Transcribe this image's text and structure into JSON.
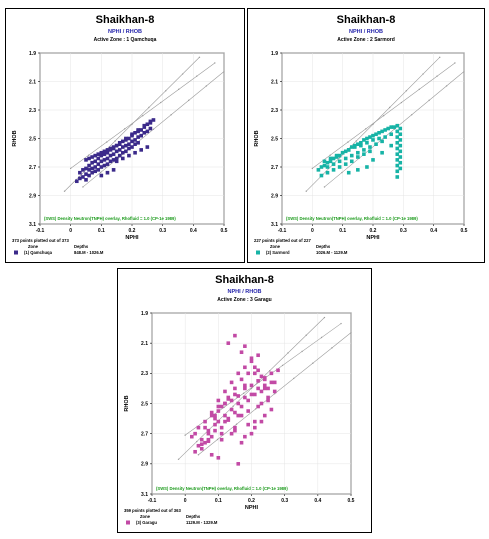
{
  "chart_data": [
    {
      "type": "scatter",
      "title": "Shaikhan-8",
      "subtitle": "NPHI / RHOB",
      "zone_title": "Active Zone : 1 Qamchuqa",
      "xlabel": "NPHI",
      "ylabel": "RHOB",
      "xlim": [
        -0.1,
        0.5
      ],
      "ylim": [
        3.1,
        1.9
      ],
      "x_ticks": [
        "-0.1",
        "0",
        "0.1",
        "0.2",
        "0.3",
        "0.4",
        "0.5"
      ],
      "y_ticks": [
        "1.9",
        "2.1",
        "2.3",
        "2.5",
        "2.7",
        "2.9",
        "3.1"
      ],
      "grid": true,
      "overlay_note": "(SWS) Density Neutron(TNPH) overlay, Rhofluid = 1.0 (CP-1e 1989)",
      "points_text": "373 points plotted out of 373",
      "zone_header": "Zone",
      "depths_header": "Depths",
      "zone_name": "(1) Qamchuqa",
      "depths": "848.M - 1026.M",
      "color": "#3b2a8a",
      "series": [
        {
          "name": "(1) Qamchuqa",
          "x": [
            0.03,
            0.04,
            0.05,
            0.05,
            0.06,
            0.06,
            0.07,
            0.07,
            0.08,
            0.08,
            0.09,
            0.09,
            0.1,
            0.1,
            0.11,
            0.11,
            0.12,
            0.12,
            0.13,
            0.13,
            0.14,
            0.14,
            0.15,
            0.15,
            0.16,
            0.16,
            0.17,
            0.17,
            0.18,
            0.18,
            0.19,
            0.19,
            0.2,
            0.2,
            0.21,
            0.21,
            0.22,
            0.22,
            0.23,
            0.23,
            0.24,
            0.24,
            0.25,
            0.25,
            0.26,
            0.26,
            0.27,
            0.02,
            0.03,
            0.04,
            0.05,
            0.06,
            0.07,
            0.08,
            0.09,
            0.1,
            0.11,
            0.12,
            0.13,
            0.14,
            0.15,
            0.16,
            0.17,
            0.18,
            0.19,
            0.2,
            0.21,
            0.22,
            0.05,
            0.06,
            0.07,
            0.08,
            0.09,
            0.1,
            0.11,
            0.12,
            0.13,
            0.14,
            0.15,
            0.16,
            0.18,
            0.2,
            0.22,
            0.24,
            0.26,
            0.15,
            0.17,
            0.19,
            0.21,
            0.23,
            0.25,
            0.1,
            0.12,
            0.14
          ],
          "y": [
            2.74,
            2.72,
            2.71,
            2.75,
            2.69,
            2.72,
            2.67,
            2.71,
            2.66,
            2.7,
            2.64,
            2.68,
            2.62,
            2.66,
            2.61,
            2.65,
            2.6,
            2.64,
            2.58,
            2.62,
            2.57,
            2.61,
            2.55,
            2.59,
            2.54,
            2.58,
            2.52,
            2.56,
            2.51,
            2.55,
            2.5,
            2.54,
            2.48,
            2.52,
            2.46,
            2.51,
            2.45,
            2.49,
            2.44,
            2.48,
            2.42,
            2.46,
            2.4,
            2.45,
            2.39,
            2.43,
            2.37,
            2.8,
            2.78,
            2.77,
            2.79,
            2.76,
            2.74,
            2.73,
            2.72,
            2.7,
            2.69,
            2.68,
            2.66,
            2.65,
            2.64,
            2.62,
            2.6,
            2.59,
            2.57,
            2.56,
            2.54,
            2.53,
            2.65,
            2.64,
            2.63,
            2.62,
            2.61,
            2.6,
            2.59,
            2.58,
            2.57,
            2.56,
            2.55,
            2.53,
            2.5,
            2.47,
            2.44,
            2.41,
            2.38,
            2.66,
            2.64,
            2.62,
            2.6,
            2.58,
            2.56,
            2.76,
            2.74,
            2.72
          ]
        }
      ]
    },
    {
      "type": "scatter",
      "title": "Shaikhan-8",
      "subtitle": "NPHI / RHOB",
      "zone_title": "Active Zone : 2 Sarmord",
      "xlabel": "NPHI",
      "ylabel": "RHOB",
      "xlim": [
        -0.1,
        0.5
      ],
      "ylim": [
        3.1,
        1.9
      ],
      "x_ticks": [
        "-0.1",
        "0",
        "0.1",
        "0.2",
        "0.3",
        "0.4",
        "0.5"
      ],
      "y_ticks": [
        "1.9",
        "2.1",
        "2.3",
        "2.5",
        "2.7",
        "2.9",
        "3.1"
      ],
      "grid": true,
      "overlay_note": "(SWS) Density Neutron(TNPH) overlay, Rhofluid = 1.0 (CP-1e 1989)",
      "points_text": "227 points plotted out of 227",
      "zone_header": "Zone",
      "depths_header": "Depths",
      "zone_name": "(2) Sarmord",
      "depths": "1026.M - 1129.M",
      "color": "#17b3a6",
      "series": [
        {
          "name": "(2) Sarmord",
          "x": [
            0.02,
            0.03,
            0.04,
            0.05,
            0.06,
            0.07,
            0.08,
            0.09,
            0.1,
            0.11,
            0.12,
            0.13,
            0.14,
            0.15,
            0.16,
            0.17,
            0.18,
            0.19,
            0.2,
            0.21,
            0.22,
            0.23,
            0.24,
            0.25,
            0.26,
            0.27,
            0.28,
            0.28,
            0.28,
            0.28,
            0.28,
            0.28,
            0.28,
            0.28,
            0.28,
            0.28,
            0.29,
            0.29,
            0.29,
            0.29,
            0.29,
            0.29,
            0.29,
            0.29,
            0.04,
            0.06,
            0.08,
            0.1,
            0.12,
            0.14,
            0.16,
            0.18,
            0.2,
            0.22,
            0.24,
            0.26,
            0.05,
            0.07,
            0.09,
            0.11,
            0.13,
            0.15,
            0.17,
            0.19,
            0.21,
            0.23,
            0.03,
            0.05,
            0.07,
            0.09,
            0.11,
            0.13,
            0.15,
            0.17,
            0.19,
            0.12,
            0.15,
            0.18,
            0.2,
            0.23,
            0.26
          ],
          "y": [
            2.72,
            2.7,
            2.69,
            2.67,
            2.66,
            2.64,
            2.63,
            2.62,
            2.6,
            2.59,
            2.58,
            2.56,
            2.55,
            2.54,
            2.53,
            2.51,
            2.5,
            2.49,
            2.48,
            2.47,
            2.46,
            2.45,
            2.44,
            2.43,
            2.42,
            2.42,
            2.41,
            2.45,
            2.49,
            2.53,
            2.57,
            2.61,
            2.65,
            2.69,
            2.73,
            2.77,
            2.43,
            2.47,
            2.51,
            2.55,
            2.59,
            2.63,
            2.67,
            2.71,
            2.66,
            2.64,
            2.62,
            2.6,
            2.58,
            2.56,
            2.55,
            2.53,
            2.51,
            2.5,
            2.49,
            2.47,
            2.7,
            2.68,
            2.66,
            2.64,
            2.62,
            2.6,
            2.58,
            2.56,
            2.54,
            2.52,
            2.76,
            2.74,
            2.72,
            2.7,
            2.68,
            2.66,
            2.63,
            2.61,
            2.59,
            2.74,
            2.72,
            2.7,
            2.65,
            2.6,
            2.55
          ]
        }
      ]
    },
    {
      "type": "scatter",
      "title": "Shaikhan-8",
      "subtitle": "NPHI / RHOB",
      "zone_title": "Active Zone : 3 Garagu",
      "xlabel": "NPHI",
      "ylabel": "RHOB",
      "xlim": [
        -0.1,
        0.5
      ],
      "ylim": [
        3.1,
        1.9
      ],
      "x_ticks": [
        "-0.1",
        "0",
        "0.1",
        "0.2",
        "0.3",
        "0.4",
        "0.5"
      ],
      "y_ticks": [
        "1.9",
        "2.1",
        "2.3",
        "2.5",
        "2.7",
        "2.9",
        "3.1"
      ],
      "grid": true,
      "overlay_note": "(SWS) Density Neutron(TNPH) overlay, Rhofluid = 1.0 (CP-1e 1989)",
      "points_text": "359 points plotted out of 363",
      "zone_header": "Zone",
      "depths_header": "Depths",
      "zone_name": "(3) Garagu",
      "depths": "1129.M - 1329.M",
      "color": "#c24aa5",
      "series": [
        {
          "name": "(3) Garagu",
          "x": [
            0.02,
            0.03,
            0.04,
            0.05,
            0.06,
            0.07,
            0.08,
            0.09,
            0.1,
            0.11,
            0.12,
            0.13,
            0.14,
            0.15,
            0.16,
            0.17,
            0.18,
            0.19,
            0.2,
            0.21,
            0.22,
            0.23,
            0.24,
            0.25,
            0.26,
            0.27,
            0.28,
            0.04,
            0.06,
            0.08,
            0.1,
            0.12,
            0.14,
            0.16,
            0.18,
            0.2,
            0.22,
            0.24,
            0.26,
            0.05,
            0.07,
            0.09,
            0.11,
            0.13,
            0.15,
            0.17,
            0.19,
            0.21,
            0.23,
            0.25,
            0.03,
            0.05,
            0.07,
            0.09,
            0.11,
            0.13,
            0.15,
            0.17,
            0.19,
            0.21,
            0.23,
            0.08,
            0.1,
            0.12,
            0.14,
            0.16,
            0.18,
            0.2,
            0.22,
            0.24,
            0.06,
            0.09,
            0.12,
            0.15,
            0.18,
            0.21,
            0.24,
            0.27,
            0.1,
            0.13,
            0.16,
            0.19,
            0.22,
            0.25,
            0.12,
            0.15,
            0.18,
            0.21,
            0.24,
            0.07,
            0.11,
            0.14,
            0.17,
            0.2,
            0.23,
            0.26,
            0.13,
            0.17,
            0.2,
            0.15,
            0.18,
            0.22,
            0.08,
            0.1,
            0.16
          ],
          "y": [
            2.72,
            2.7,
            2.66,
            2.74,
            2.62,
            2.68,
            2.58,
            2.64,
            2.55,
            2.7,
            2.5,
            2.61,
            2.48,
            2.66,
            2.45,
            2.58,
            2.4,
            2.55,
            2.38,
            2.62,
            2.35,
            2.5,
            2.33,
            2.46,
            2.3,
            2.42,
            2.28,
            2.78,
            2.76,
            2.72,
            2.62,
            2.58,
            2.54,
            2.5,
            2.46,
            2.44,
            2.4,
            2.38,
            2.36,
            2.8,
            2.74,
            2.68,
            2.66,
            2.6,
            2.56,
            2.52,
            2.48,
            2.44,
            2.42,
            2.4,
            2.82,
            2.77,
            2.7,
            2.6,
            2.52,
            2.47,
            2.4,
            2.34,
            2.3,
            2.26,
            2.32,
            2.56,
            2.48,
            2.42,
            2.36,
            2.3,
            2.26,
            2.22,
            2.28,
            2.34,
            2.66,
            2.58,
            2.5,
            2.44,
            2.38,
            2.3,
            2.4,
            2.36,
            2.52,
            2.46,
            2.58,
            2.64,
            2.52,
            2.48,
            2.62,
            2.68,
            2.72,
            2.66,
            2.58,
            2.75,
            2.74,
            2.7,
            2.76,
            2.7,
            2.62,
            2.54,
            2.1,
            2.16,
            2.2,
            2.05,
            2.12,
            2.18,
            2.84,
            2.86,
            2.9
          ]
        }
      ]
    }
  ]
}
